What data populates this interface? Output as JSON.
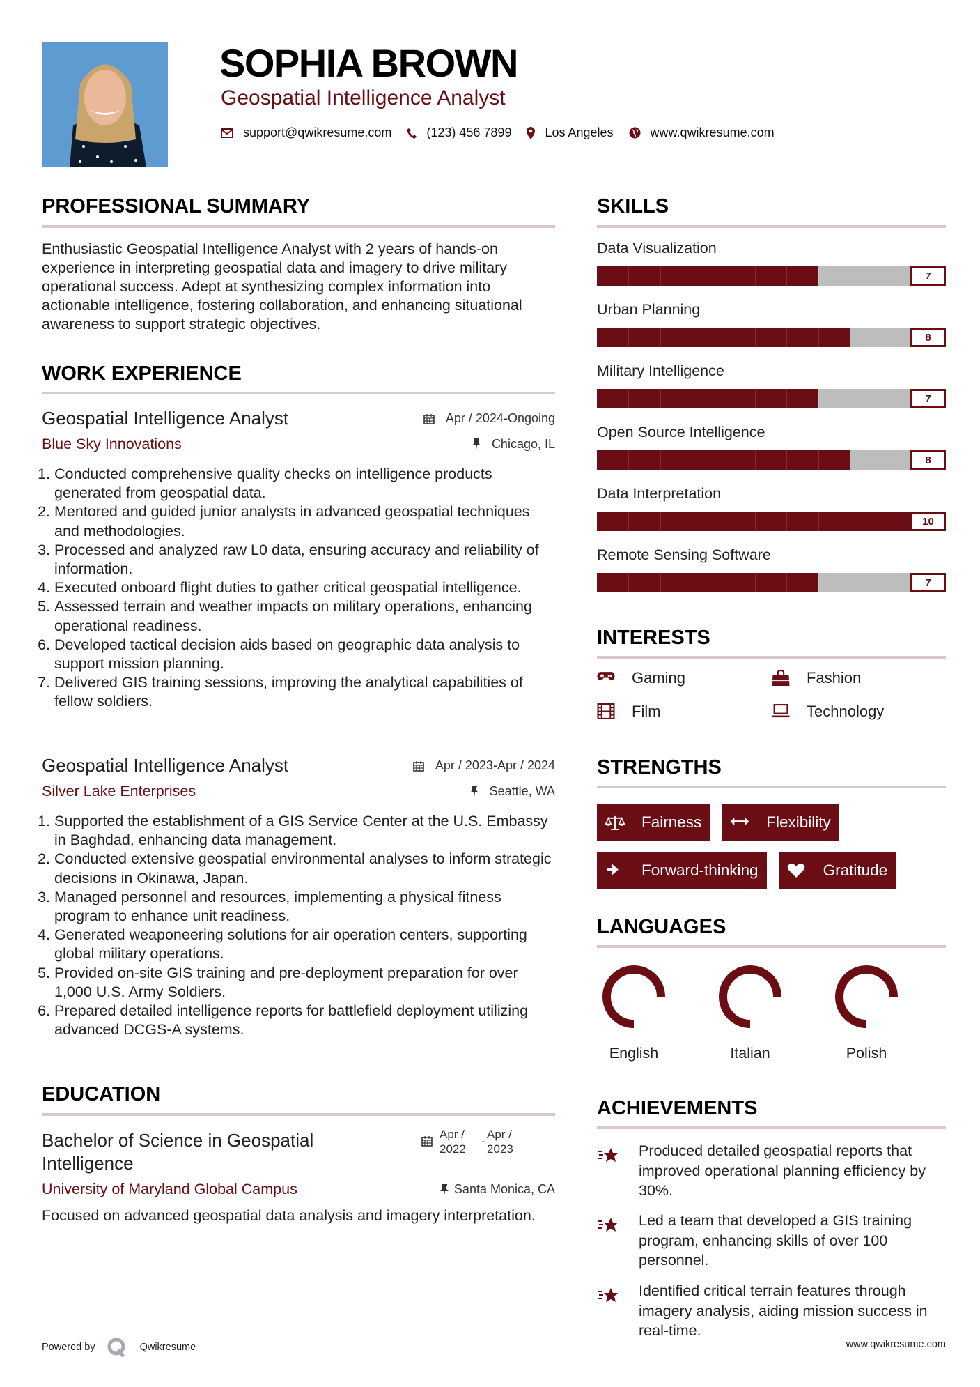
{
  "header": {
    "name": "SOPHIA BROWN",
    "title": "Geospatial Intelligence Analyst",
    "contact": {
      "email": "support@qwikresume.com",
      "phone": "(123) 456 7899",
      "location": "Los Angeles",
      "website": "www.qwikresume.com"
    }
  },
  "colors": {
    "accent": "#6b0d14",
    "bar_empty": "#bdbdbd",
    "section_rule": "#d9c7cb"
  },
  "summary": {
    "heading": "PROFESSIONAL SUMMARY",
    "text": "Enthusiastic Geospatial Intelligence Analyst with 2 years of hands-on experience in interpreting geospatial data and imagery to drive military operational success. Adept at synthesizing complex information into actionable intelligence, fostering collaboration, and enhancing situational awareness to support strategic objectives."
  },
  "experience": {
    "heading": "WORK EXPERIENCE",
    "jobs": [
      {
        "title": "Geospatial Intelligence Analyst",
        "company": "Blue Sky Innovations",
        "dates": "Apr / 2024-Ongoing",
        "location": "Chicago, IL",
        "bullets": [
          "Conducted comprehensive quality checks on intelligence products generated from geospatial data.",
          "Mentored and guided junior analysts in advanced geospatial techniques and methodologies.",
          "Processed and analyzed raw L0 data, ensuring accuracy and reliability of information.",
          "Executed onboard flight duties to gather critical geospatial intelligence.",
          "Assessed terrain and weather impacts on military operations, enhancing operational readiness.",
          "Developed tactical decision aids based on geographic data analysis to support mission planning.",
          "Delivered GIS training sessions, improving the analytical capabilities of fellow soldiers."
        ]
      },
      {
        "title": "Geospatial Intelligence Analyst",
        "company": "Silver Lake Enterprises",
        "dates": "Apr / 2023-Apr / 2024",
        "location": "Seattle, WA",
        "bullets": [
          "Supported the establishment of a GIS Service Center at the U.S. Embassy in Baghdad, enhancing data management.",
          "Conducted extensive geospatial environmental analyses to inform strategic decisions in Okinawa, Japan.",
          "Managed personnel and resources, implementing a physical fitness program to enhance unit readiness.",
          "Generated weaponeering solutions for air operation centers, supporting global military operations.",
          "Provided on-site GIS training and pre-deployment preparation for over 1,000 U.S. Army Soldiers.",
          "Prepared detailed intelligence reports for battlefield deployment utilizing advanced DCGS-A systems."
        ]
      }
    ]
  },
  "education": {
    "heading": "EDUCATION",
    "degree": "Bachelor of Science in Geospatial Intelligence",
    "school": "University of Maryland Global Campus",
    "start_month": "Apr /",
    "start_year": "2022",
    "separator": "-",
    "end_month": "Apr /",
    "end_year": "2023",
    "location": "Santa Monica, CA",
    "description": "Focused on advanced geospatial data analysis and imagery interpretation."
  },
  "skills": {
    "heading": "SKILLS",
    "max": 10,
    "items": [
      {
        "label": "Data Visualization",
        "value": 7
      },
      {
        "label": "Urban Planning",
        "value": 8
      },
      {
        "label": "Military Intelligence",
        "value": 7
      },
      {
        "label": "Open Source Intelligence",
        "value": 8
      },
      {
        "label": "Data Interpretation",
        "value": 10
      },
      {
        "label": "Remote Sensing Software",
        "value": 7
      }
    ]
  },
  "interests": {
    "heading": "INTERESTS",
    "items": [
      {
        "label": "Gaming",
        "icon": "gamepad-icon"
      },
      {
        "label": "Fashion",
        "icon": "shopping-bag-icon"
      },
      {
        "label": "Film",
        "icon": "film-icon"
      },
      {
        "label": "Technology",
        "icon": "laptop-icon"
      }
    ]
  },
  "strengths": {
    "heading": "STRENGTHS",
    "items": [
      {
        "label": "Fairness",
        "icon": "balance-scale-icon"
      },
      {
        "label": "Flexibility",
        "icon": "arrows-horizontal-icon"
      },
      {
        "label": "Forward-thinking",
        "icon": "arrow-right-icon"
      },
      {
        "label": "Gratitude",
        "icon": "heart-icon"
      }
    ]
  },
  "languages": {
    "heading": "LANGUAGES",
    "items": [
      {
        "label": "English",
        "level_percent": 75
      },
      {
        "label": "Italian",
        "level_percent": 75
      },
      {
        "label": "Polish",
        "level_percent": 75
      }
    ]
  },
  "achievements": {
    "heading": "ACHIEVEMENTS",
    "items": [
      "Produced detailed geospatial reports that improved operational planning efficiency by 30%.",
      "Led a team that developed a GIS training program, enhancing skills of over 100 personnel.",
      "Identified critical terrain features through imagery analysis, aiding mission success in real-time."
    ]
  },
  "footer": {
    "powered_by": "Powered by",
    "brand": "Qwikresume",
    "website": "www.qwikresume.com"
  }
}
